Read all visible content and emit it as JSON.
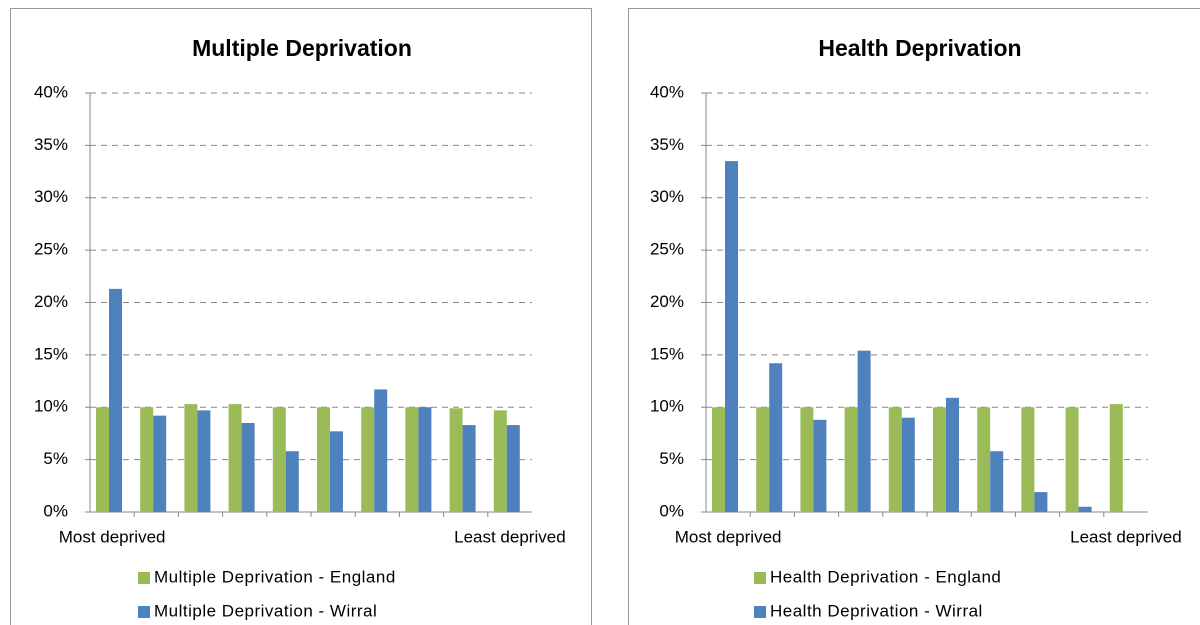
{
  "chart_data": [
    {
      "type": "bar",
      "title": "Multiple Deprivation",
      "categories": [
        "Most deprived",
        null,
        null,
        null,
        null,
        null,
        null,
        null,
        null,
        "Least deprived"
      ],
      "series": [
        {
          "name": "Multiple Deprivation - England",
          "color": "#9bbb59",
          "values": [
            10,
            10,
            10.3,
            10.3,
            10,
            10,
            10,
            10,
            9.9,
            9.7
          ]
        },
        {
          "name": "Multiple Deprivation - Wirral",
          "color": "#4f81bd",
          "values": [
            21.3,
            9.2,
            9.7,
            8.5,
            5.8,
            7.7,
            11.7,
            10,
            8.3,
            8.3
          ]
        }
      ],
      "ylim": [
        0,
        40
      ],
      "yticks": [
        {
          "value": 0,
          "label": "0%"
        },
        {
          "value": 5,
          "label": "5%"
        },
        {
          "value": 10,
          "label": "10%"
        },
        {
          "value": 15,
          "label": "15%"
        },
        {
          "value": 20,
          "label": "20%"
        },
        {
          "value": 25,
          "label": "25%"
        },
        {
          "value": 30,
          "label": "30%"
        },
        {
          "value": 35,
          "label": "35%"
        },
        {
          "value": 40,
          "label": "40%"
        }
      ],
      "grid": true
    },
    {
      "type": "bar",
      "title": "Health Deprivation",
      "categories": [
        "Most deprived",
        null,
        null,
        null,
        null,
        null,
        null,
        null,
        null,
        "Least deprived"
      ],
      "series": [
        {
          "name": "Health Deprivation - England",
          "color": "#9bbb59",
          "values": [
            10,
            10,
            10,
            10,
            10,
            10,
            10,
            10,
            10,
            10.3
          ]
        },
        {
          "name": "Health Deprivation - Wirral",
          "color": "#4f81bd",
          "values": [
            33.5,
            14.2,
            8.8,
            15.4,
            9,
            10.9,
            5.8,
            1.9,
            0.5,
            0
          ]
        }
      ],
      "ylim": [
        0,
        40
      ],
      "yticks": [
        {
          "value": 0,
          "label": "0%"
        },
        {
          "value": 5,
          "label": "5%"
        },
        {
          "value": 10,
          "label": "10%"
        },
        {
          "value": 15,
          "label": "15%"
        },
        {
          "value": 20,
          "label": "20%"
        },
        {
          "value": 25,
          "label": "25%"
        },
        {
          "value": 30,
          "label": "30%"
        },
        {
          "value": 35,
          "label": "35%"
        },
        {
          "value": 40,
          "label": "40%"
        }
      ],
      "grid": true
    }
  ]
}
